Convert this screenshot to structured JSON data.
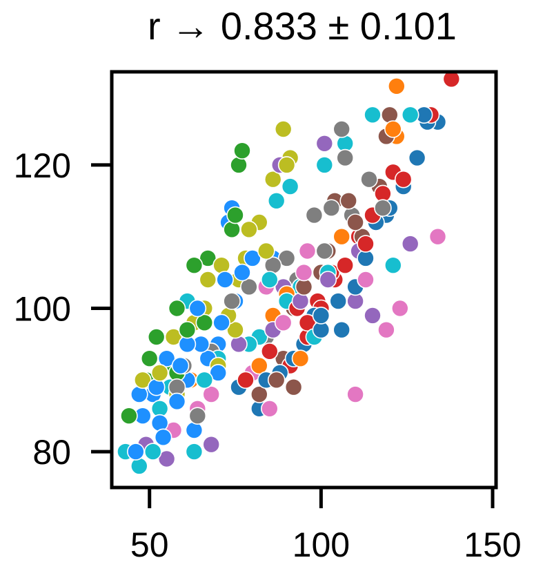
{
  "chart_data": {
    "type": "scatter",
    "title": "r → 0.833 ± 0.101",
    "xlabel": "",
    "ylabel": "",
    "xlim": [
      39,
      151
    ],
    "ylim": [
      75,
      133
    ],
    "xticks": [
      50,
      100,
      150
    ],
    "yticks": [
      80,
      100,
      120
    ],
    "x_tick_labels": [
      "50",
      "100",
      "150"
    ],
    "y_tick_labels": [
      "80",
      "100",
      "120"
    ],
    "grid": false,
    "legend": "none",
    "marker": "circle, white edge",
    "series": [
      {
        "color": "#1f77b4",
        "points": [
          [
            82,
            86
          ],
          [
            88,
            91
          ],
          [
            95,
            95
          ],
          [
            100,
            97
          ],
          [
            105,
            101
          ],
          [
            110,
            103
          ],
          [
            116,
            112
          ],
          [
            120,
            114
          ],
          [
            124,
            117
          ],
          [
            128,
            121
          ],
          [
            131,
            126
          ],
          [
            134,
            126
          ],
          [
            113,
            107
          ],
          [
            106,
            97
          ],
          [
            100,
            99
          ],
          [
            92,
            93
          ],
          [
            76,
            89
          ],
          [
            84,
            90
          ],
          [
            98,
            99
          ],
          [
            119,
            113
          ],
          [
            130,
            127
          ]
        ]
      },
      {
        "color": "#ff7f0e",
        "points": [
          [
            122,
            131
          ],
          [
            121,
            125
          ],
          [
            128,
            121
          ],
          [
            122,
            124
          ],
          [
            94,
            93
          ],
          [
            86,
            99
          ],
          [
            68,
            88
          ],
          [
            106,
            110
          ],
          [
            90,
            102
          ],
          [
            62,
            90
          ],
          [
            82,
            92
          ]
        ]
      },
      {
        "color": "#2ca02c",
        "points": [
          [
            44,
            85
          ],
          [
            49,
            90
          ],
          [
            52,
            96
          ],
          [
            50,
            93
          ],
          [
            55,
            92
          ],
          [
            58,
            100
          ],
          [
            63,
            106
          ],
          [
            67,
            107
          ],
          [
            77,
            122
          ],
          [
            76,
            120
          ],
          [
            75,
            113
          ],
          [
            74,
            111
          ],
          [
            58,
            91
          ],
          [
            61,
            97
          ],
          [
            66,
            98
          ]
        ]
      },
      {
        "color": "#d62728",
        "points": [
          [
            78,
            90
          ],
          [
            85,
            94
          ],
          [
            91,
            92
          ],
          [
            96,
            96
          ],
          [
            99,
            101
          ],
          [
            104,
            104
          ],
          [
            107,
            106
          ],
          [
            111,
            110
          ],
          [
            115,
            113
          ],
          [
            118,
            116
          ],
          [
            121,
            119
          ],
          [
            124,
            118
          ],
          [
            132,
            127
          ],
          [
            138,
            132
          ],
          [
            96,
            98
          ],
          [
            100,
            100
          ],
          [
            103,
            105
          ],
          [
            113,
            109
          ],
          [
            86,
            97
          ],
          [
            93,
            100
          ]
        ]
      },
      {
        "color": "#9467bd",
        "points": [
          [
            55,
            79
          ],
          [
            49,
            81
          ],
          [
            68,
            81
          ],
          [
            110,
            101
          ],
          [
            102,
            104
          ],
          [
            89,
            103
          ],
          [
            94,
            101
          ],
          [
            86,
            97
          ],
          [
            115,
            99
          ],
          [
            126,
            109
          ],
          [
            111,
            108
          ],
          [
            101,
            123
          ],
          [
            88,
            120
          ],
          [
            76,
            95
          ]
        ]
      },
      {
        "color": "#8c564b",
        "points": [
          [
            82,
            88
          ],
          [
            89,
            93
          ],
          [
            92,
            89
          ],
          [
            96,
            98
          ],
          [
            95,
            103
          ],
          [
            102,
            108
          ],
          [
            104,
            115
          ],
          [
            110,
            112
          ],
          [
            112,
            110
          ],
          [
            117,
            117
          ],
          [
            119,
            124
          ],
          [
            120,
            127
          ],
          [
            100,
            105
          ],
          [
            108,
            115
          ],
          [
            92,
            100
          ],
          [
            87,
            90
          ]
        ]
      },
      {
        "color": "#e377c2",
        "points": [
          [
            85,
            86
          ],
          [
            110,
            88
          ],
          [
            119,
            97
          ],
          [
            123,
            100
          ],
          [
            134,
            110
          ],
          [
            113,
            104
          ],
          [
            96,
            108
          ],
          [
            92,
            101
          ],
          [
            84,
            103
          ],
          [
            80,
            91
          ],
          [
            64,
            86
          ],
          [
            68,
            88
          ],
          [
            57,
            83
          ],
          [
            95,
            105
          ],
          [
            89,
            98
          ]
        ]
      },
      {
        "color": "#7f7f7f",
        "points": [
          [
            64,
            85
          ],
          [
            58,
            89
          ],
          [
            68,
            94
          ],
          [
            74,
            101
          ],
          [
            79,
            103
          ],
          [
            84,
            96
          ],
          [
            86,
            106
          ],
          [
            90,
            107
          ],
          [
            98,
            113
          ],
          [
            106,
            125
          ],
          [
            109,
            113
          ],
          [
            118,
            114
          ],
          [
            114,
            118
          ],
          [
            107,
            121
          ],
          [
            103,
            114
          ],
          [
            60,
            92
          ],
          [
            93,
            104
          ],
          [
            101,
            108
          ]
        ]
      },
      {
        "color": "#bcbd22",
        "points": [
          [
            48,
            90
          ],
          [
            53,
            91
          ],
          [
            57,
            96
          ],
          [
            63,
            98
          ],
          [
            67,
            104
          ],
          [
            71,
            106
          ],
          [
            76,
            104
          ],
          [
            75,
            97
          ],
          [
            79,
            111
          ],
          [
            84,
            108
          ],
          [
            86,
            118
          ],
          [
            89,
            125
          ],
          [
            90,
            120
          ],
          [
            91,
            121
          ],
          [
            66,
            100
          ],
          [
            70,
            92
          ],
          [
            58,
            88
          ],
          [
            82,
            112
          ],
          [
            73,
            99
          ],
          [
            78,
            107
          ]
        ]
      },
      {
        "color": "#17becf",
        "points": [
          [
            43,
            80
          ],
          [
            47,
            78
          ],
          [
            51,
            80
          ],
          [
            53,
            86
          ],
          [
            56,
            89
          ],
          [
            63,
            80
          ],
          [
            61,
            101
          ],
          [
            66,
            90
          ],
          [
            72,
            98
          ],
          [
            79,
            95
          ],
          [
            85,
            104
          ],
          [
            90,
            101
          ],
          [
            94,
            103
          ],
          [
            98,
            96
          ],
          [
            102,
            105
          ],
          [
            107,
            123
          ],
          [
            115,
            127
          ],
          [
            121,
            106
          ],
          [
            126,
            127
          ],
          [
            87,
            115
          ],
          [
            91,
            117
          ],
          [
            101,
            120
          ],
          [
            70,
            93
          ],
          [
            82,
            96
          ]
        ]
      },
      {
        "color": "#1e90ff",
        "points": [
          [
            46,
            80
          ],
          [
            48,
            85
          ],
          [
            51,
            88
          ],
          [
            53,
            84
          ],
          [
            55,
            93
          ],
          [
            58,
            87
          ],
          [
            61,
            95
          ],
          [
            63,
            83
          ],
          [
            64,
            100
          ],
          [
            67,
            93
          ],
          [
            70,
            95
          ],
          [
            71,
            98
          ],
          [
            72,
            104
          ],
          [
            73,
            112
          ],
          [
            74,
            114
          ],
          [
            75,
            101
          ],
          [
            77,
            105
          ],
          [
            80,
            107
          ],
          [
            86,
            107
          ],
          [
            70,
            91
          ],
          [
            65,
            95
          ],
          [
            61,
            90
          ],
          [
            59,
            92
          ],
          [
            52,
            89
          ],
          [
            47,
            88
          ],
          [
            54,
            82
          ]
        ]
      }
    ]
  }
}
